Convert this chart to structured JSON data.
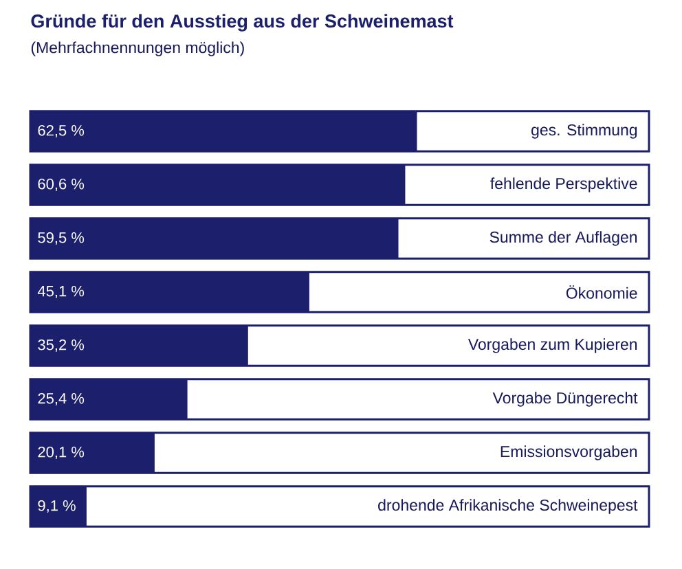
{
  "chart_data": {
    "type": "bar",
    "orientation": "horizontal",
    "title": "Gründe für den Ausstieg aus der Schweinemast",
    "subtitle": "(Mehrfachnennungen möglich)",
    "categories": [
      "ges. Stimmung",
      "fehlende Perspektive",
      "Summe der Auflagen",
      "Ökonomie",
      "Vorgaben zum Kupieren",
      "Vorgabe Düngerecht",
      "Emissionsvorgaben",
      "drohende Afrikanische Schweinepest"
    ],
    "values": [
      62.5,
      60.6,
      59.5,
      45.1,
      35.2,
      25.4,
      20.1,
      9.1
    ],
    "value_labels": [
      "62,5 %",
      "60,6 %",
      "59,5 %",
      "45,1 %",
      "35,2 %",
      "25,4 %",
      "20,1 %",
      "9,1 %"
    ],
    "color": "#1c1f6b",
    "xlim": [
      0,
      100
    ]
  }
}
